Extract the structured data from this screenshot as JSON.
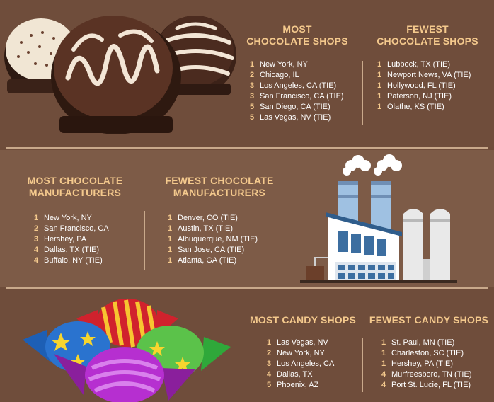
{
  "shops": {
    "most": {
      "heading_line1": "MOST",
      "heading_line2": "CHOCOLATE SHOPS",
      "items": [
        {
          "rank": "1",
          "name": "New York, NY"
        },
        {
          "rank": "2",
          "name": "Chicago, IL"
        },
        {
          "rank": "3",
          "name": "Los Angeles, CA (TIE)"
        },
        {
          "rank": "3",
          "name": "San Francisco, CA (TIE)"
        },
        {
          "rank": "5",
          "name": "San Diego, CA (TIE)"
        },
        {
          "rank": "5",
          "name": "Las Vegas, NV (TIE)"
        }
      ]
    },
    "fewest": {
      "heading_line1": "FEWEST",
      "heading_line2": "CHOCOLATE SHOPS",
      "items": [
        {
          "rank": "1",
          "name": "Lubbock, TX (TIE)"
        },
        {
          "rank": "1",
          "name": "Newport News, VA (TIE)"
        },
        {
          "rank": "1",
          "name": "Hollywood, FL (TIE)"
        },
        {
          "rank": "1",
          "name": "Paterson, NJ (TIE)"
        },
        {
          "rank": "1",
          "name": "Olathe, KS (TIE)"
        }
      ]
    }
  },
  "manufacturers": {
    "most": {
      "heading_line1": "MOST CHOCOLATE",
      "heading_line2": "MANUFACTURERS",
      "items": [
        {
          "rank": "1",
          "name": "New York, NY"
        },
        {
          "rank": "2",
          "name": "San Francisco, CA"
        },
        {
          "rank": "3",
          "name": "Hershey, PA"
        },
        {
          "rank": "4",
          "name": "Dallas, TX (TIE)"
        },
        {
          "rank": "4",
          "name": "Buffalo, NY (TIE)"
        }
      ]
    },
    "fewest": {
      "heading_line1": "FEWEST CHOCOLATE",
      "heading_line2": "MANUFACTURERS",
      "items": [
        {
          "rank": "1",
          "name": "Denver, CO (TIE)"
        },
        {
          "rank": "1",
          "name": "Austin, TX (TIE)"
        },
        {
          "rank": "1",
          "name": "Albuquerque, NM (TIE)"
        },
        {
          "rank": "1",
          "name": "San Jose, CA (TIE)"
        },
        {
          "rank": "1",
          "name": "Atlanta, GA (TIE)"
        }
      ]
    }
  },
  "candy": {
    "most": {
      "heading": "MOST CANDY SHOPS",
      "items": [
        {
          "rank": "1",
          "name": "Las Vegas, NV"
        },
        {
          "rank": "2",
          "name": "New York, NY"
        },
        {
          "rank": "3",
          "name": "Los Angeles, CA"
        },
        {
          "rank": "4",
          "name": "Dallas, TX"
        },
        {
          "rank": "5",
          "name": "Phoenix, AZ"
        }
      ]
    },
    "fewest": {
      "heading": "FEWEST CANDY SHOPS",
      "items": [
        {
          "rank": "1",
          "name": "St. Paul, MN (TIE)"
        },
        {
          "rank": "1",
          "name": "Charleston, SC (TIE)"
        },
        {
          "rank": "1",
          "name": "Hershey, PA (TIE)"
        },
        {
          "rank": "4",
          "name": "Murfreesboro, TN (TIE)"
        },
        {
          "rank": "4",
          "name": "Port St. Lucie, FL (TIE)"
        }
      ]
    }
  },
  "colors": {
    "background": "#6f4d3b",
    "band": "#7d5b47",
    "heading": "#f4c98d",
    "text": "#ffffff",
    "divider": "#c9a98b"
  },
  "icons": [
    "chocolate-truffles-illustration",
    "factory-illustration",
    "wrapped-candies-illustration"
  ]
}
